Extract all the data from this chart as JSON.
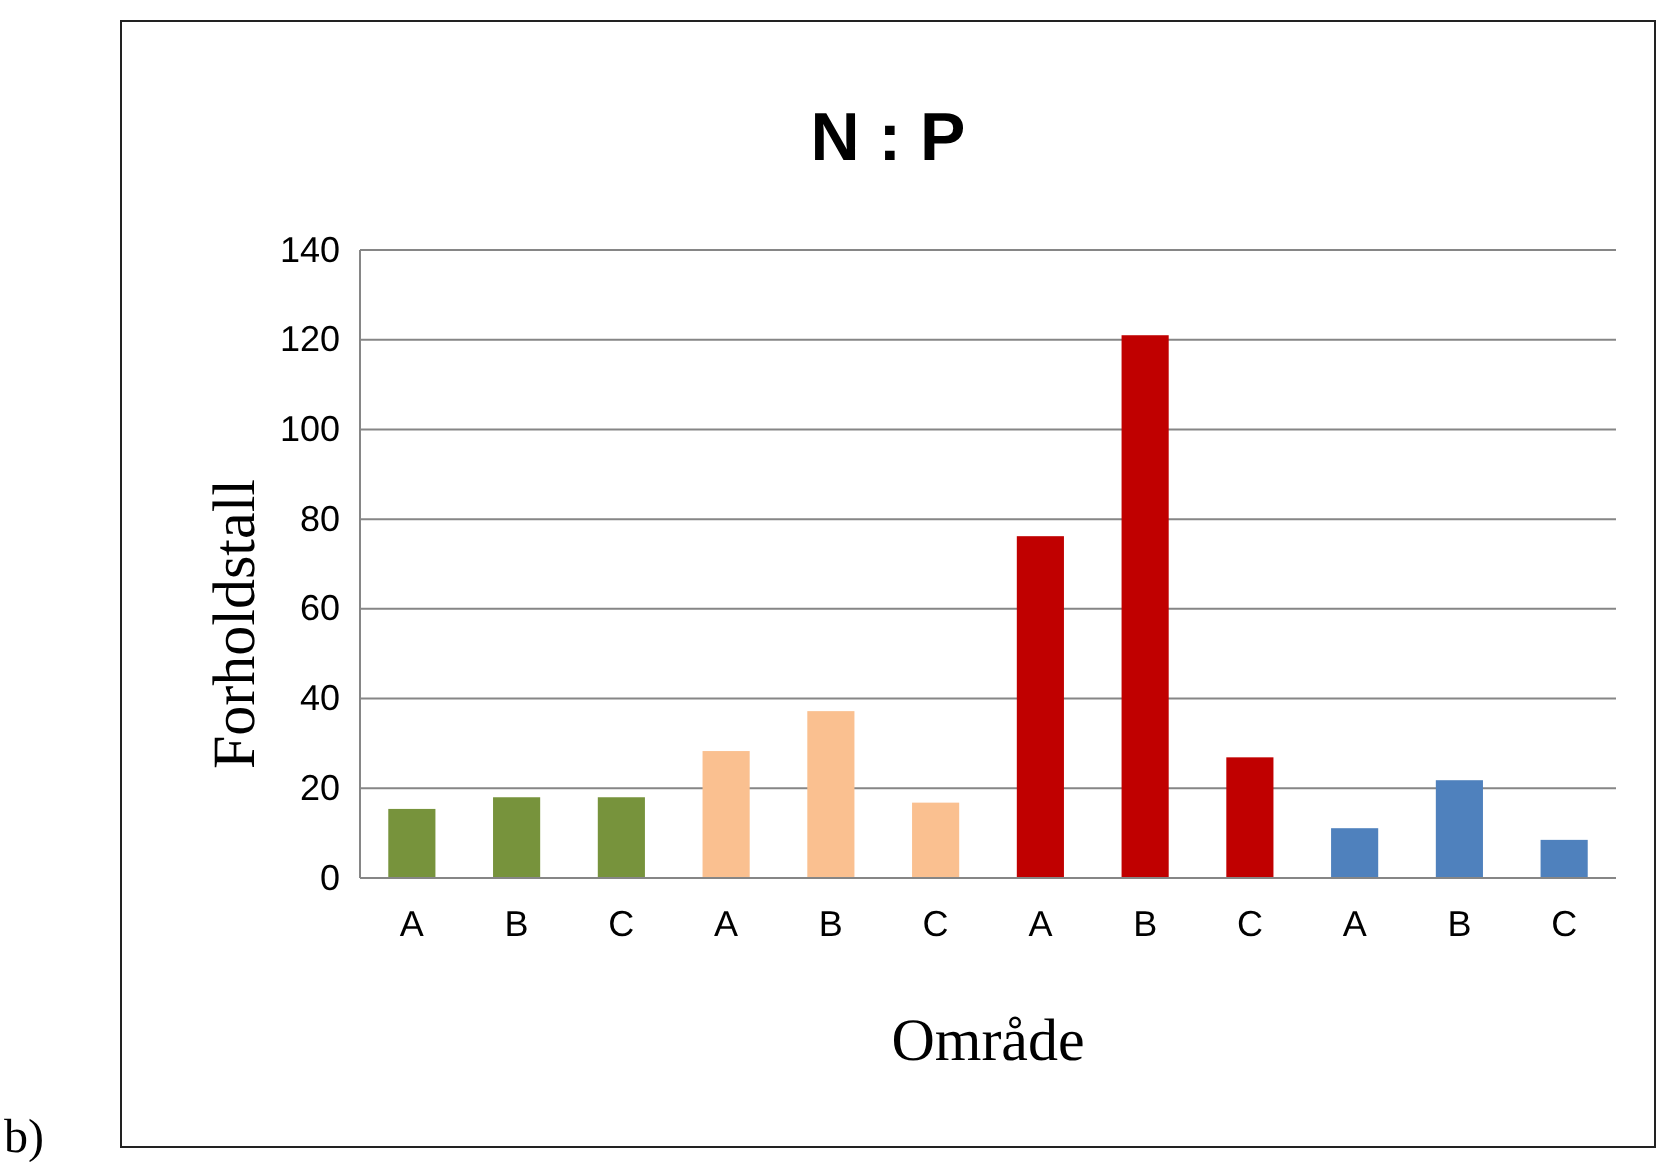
{
  "chart_data": {
    "type": "bar",
    "title": "N : P",
    "xlabel": "Område",
    "ylabel": "Forholdstall",
    "categories": [
      "A",
      "B",
      "C",
      "A",
      "B",
      "C",
      "A",
      "B",
      "C",
      "A",
      "B",
      "C"
    ],
    "values": [
      15.4,
      18,
      18,
      28.3,
      37.2,
      16.8,
      76.2,
      121,
      26.9,
      11.1,
      21.8,
      8.5
    ],
    "colors": [
      "#77933c",
      "#77933c",
      "#77933c",
      "#fac090",
      "#fac090",
      "#fac090",
      "#c00000",
      "#c00000",
      "#c00000",
      "#4f81bd",
      "#4f81bd",
      "#4f81bd"
    ],
    "ylim": [
      0,
      140
    ],
    "yticks": [
      0,
      20,
      40,
      60,
      80,
      100,
      120,
      140
    ],
    "grid": "y",
    "annotations": [
      "b)"
    ]
  }
}
